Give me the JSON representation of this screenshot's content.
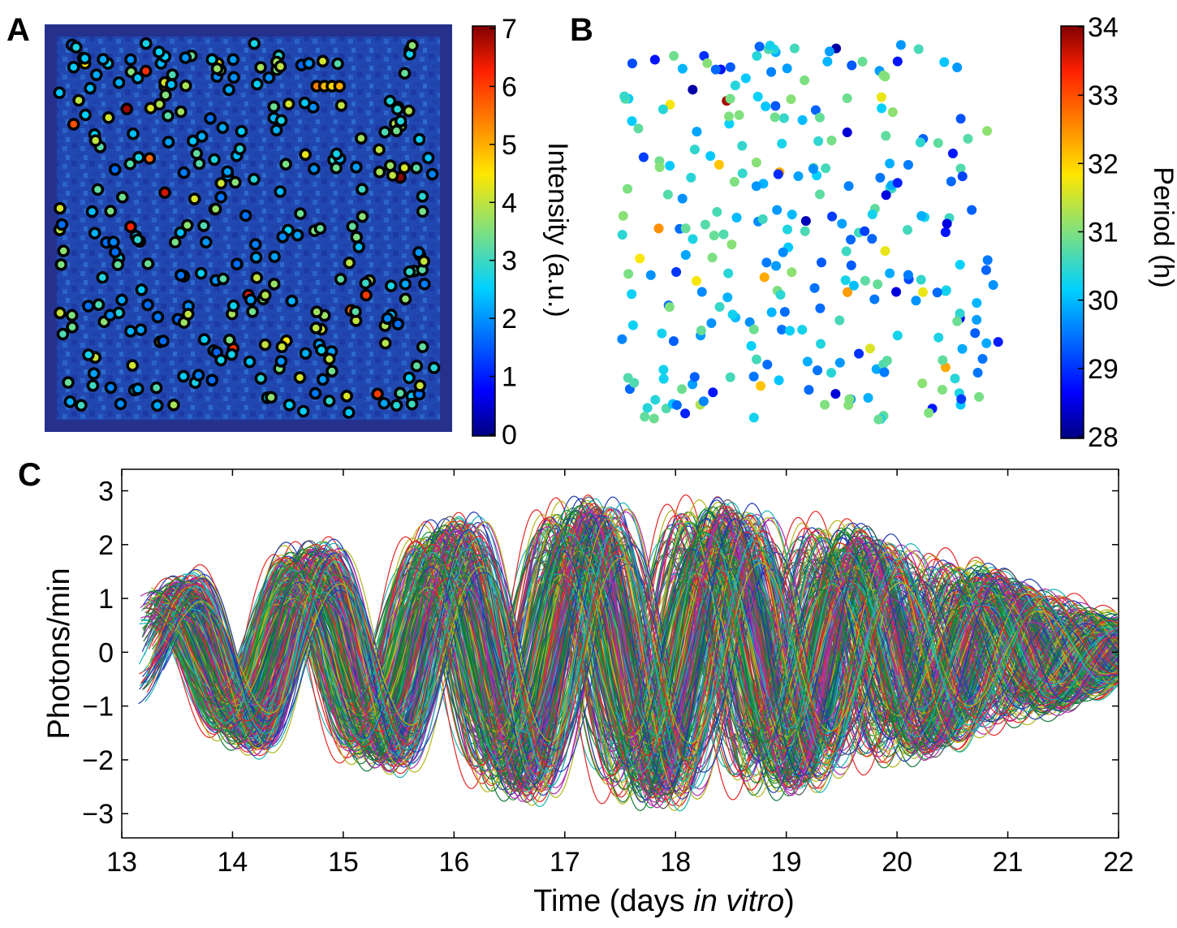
{
  "panels": {
    "a": {
      "label": "A"
    },
    "b": {
      "label": "B"
    },
    "c": {
      "label": "C"
    }
  },
  "chart_data": [
    {
      "type": "heatmap",
      "panel": "A",
      "colorbar": {
        "label": "Intensity (a.u.)",
        "ticks": [
          0,
          1,
          2,
          3,
          4,
          5,
          6,
          7
        ],
        "lim": [
          0,
          7
        ],
        "colormap": "jet"
      },
      "background_color": "#1f2f8c",
      "notes": "Bioluminescence image of cultured cells, each detected cell marked with a black ring; ring centre colored by intensity.",
      "cells": [
        {
          "x": 0.04,
          "y": 0.07,
          "v": 2.5
        },
        {
          "x": 0.07,
          "y": 0.06,
          "v": 4.5
        },
        {
          "x": 0.1,
          "y": 0.09,
          "v": 2.2
        },
        {
          "x": 0.13,
          "y": 0.06,
          "v": 2.6
        },
        {
          "x": 0.19,
          "y": 0.05,
          "v": 2.0
        },
        {
          "x": 0.23,
          "y": 0.08,
          "v": 6.1
        },
        {
          "x": 0.27,
          "y": 0.06,
          "v": 2.3
        },
        {
          "x": 0.3,
          "y": 0.09,
          "v": 3.1
        },
        {
          "x": 0.35,
          "y": 0.04,
          "v": 3.3
        },
        {
          "x": 0.42,
          "y": 0.06,
          "v": 4.4
        },
        {
          "x": 0.46,
          "y": 0.05,
          "v": 2.1
        },
        {
          "x": 0.58,
          "y": 0.04,
          "v": 2.9
        },
        {
          "x": 0.68,
          "y": 0.12,
          "v": 5.4
        },
        {
          "x": 0.7,
          "y": 0.12,
          "v": 4.9
        },
        {
          "x": 0.72,
          "y": 0.12,
          "v": 4.6
        },
        {
          "x": 0.74,
          "y": 0.12,
          "v": 5.0
        },
        {
          "x": 0.18,
          "y": 0.18,
          "v": 6.8
        },
        {
          "x": 0.28,
          "y": 0.12,
          "v": 5.7
        },
        {
          "x": 0.04,
          "y": 0.22,
          "v": 5.8
        },
        {
          "x": 0.11,
          "y": 0.28,
          "v": 3.2
        },
        {
          "x": 0.24,
          "y": 0.31,
          "v": 5.6
        },
        {
          "x": 0.28,
          "y": 0.4,
          "v": 6.5
        },
        {
          "x": 0.19,
          "y": 0.49,
          "v": 6.2
        },
        {
          "x": 0.9,
          "y": 0.36,
          "v": 6.9
        },
        {
          "x": 0.95,
          "y": 0.26,
          "v": 2.6
        },
        {
          "x": 0.65,
          "y": 0.3,
          "v": 4.3
        },
        {
          "x": 0.33,
          "y": 0.62,
          "v": 5.0
        },
        {
          "x": 0.5,
          "y": 0.67,
          "v": 6.3
        },
        {
          "x": 0.46,
          "y": 0.81,
          "v": 6.1
        },
        {
          "x": 0.77,
          "y": 0.71,
          "v": 5.6
        },
        {
          "x": 0.81,
          "y": 0.67,
          "v": 6.0
        },
        {
          "x": 0.12,
          "y": 0.74,
          "v": 3.6
        },
        {
          "x": 0.6,
          "y": 0.79,
          "v": 4.4
        },
        {
          "x": 0.72,
          "y": 0.87,
          "v": 3.4
        },
        {
          "x": 0.84,
          "y": 0.93,
          "v": 6.0
        },
        {
          "x": 0.89,
          "y": 0.96,
          "v": 2.8
        },
        {
          "x": 0.36,
          "y": 0.9,
          "v": 2.7
        },
        {
          "x": 0.2,
          "y": 0.92,
          "v": 2.5
        },
        {
          "x": 0.55,
          "y": 0.94,
          "v": 2.6
        },
        {
          "x": 0.06,
          "y": 0.96,
          "v": 3.0
        }
      ]
    },
    {
      "type": "scatter",
      "panel": "B",
      "colorbar": {
        "label": "Period (h)",
        "ticks": [
          28,
          29,
          30,
          31,
          32,
          33,
          34
        ],
        "lim": [
          28,
          34
        ],
        "colormap": "jet"
      },
      "notes": "Spatial map of detected cells colored by circadian period; majority between 29.5 and 31 h.",
      "points": [
        {
          "x": 0.03,
          "y": 0.05,
          "v": 29.2
        },
        {
          "x": 0.09,
          "y": 0.04,
          "v": 28.8
        },
        {
          "x": 0.14,
          "y": 0.03,
          "v": 30.9
        },
        {
          "x": 0.22,
          "y": 0.03,
          "v": 29.0
        },
        {
          "x": 0.29,
          "y": 0.06,
          "v": 29.3
        },
        {
          "x": 0.36,
          "y": 0.03,
          "v": 30.4
        },
        {
          "x": 0.41,
          "y": 0.02,
          "v": 29.9
        },
        {
          "x": 0.46,
          "y": 0.01,
          "v": 30.6
        },
        {
          "x": 0.57,
          "y": 0.01,
          "v": 28.2
        },
        {
          "x": 0.19,
          "y": 0.12,
          "v": 28.2
        },
        {
          "x": 0.28,
          "y": 0.15,
          "v": 33.8
        },
        {
          "x": 0.13,
          "y": 0.16,
          "v": 31.8
        },
        {
          "x": 0.69,
          "y": 0.14,
          "v": 31.7
        },
        {
          "x": 0.72,
          "y": 0.18,
          "v": 31.1
        },
        {
          "x": 0.06,
          "y": 0.3,
          "v": 29.1
        },
        {
          "x": 0.26,
          "y": 0.32,
          "v": 32.1
        },
        {
          "x": 0.42,
          "y": 0.34,
          "v": 32.3
        },
        {
          "x": 0.9,
          "y": 0.33,
          "v": 30.7
        },
        {
          "x": 0.97,
          "y": 0.23,
          "v": 31.1
        },
        {
          "x": 0.1,
          "y": 0.49,
          "v": 32.5
        },
        {
          "x": 0.49,
          "y": 0.47,
          "v": 28.3
        },
        {
          "x": 0.86,
          "y": 0.5,
          "v": 28.8
        },
        {
          "x": 0.7,
          "y": 0.55,
          "v": 31.7
        },
        {
          "x": 0.05,
          "y": 0.57,
          "v": 31.8
        },
        {
          "x": 0.2,
          "y": 0.63,
          "v": 31.8
        },
        {
          "x": 0.38,
          "y": 0.62,
          "v": 32.3
        },
        {
          "x": 0.6,
          "y": 0.66,
          "v": 32.4
        },
        {
          "x": 0.8,
          "y": 0.66,
          "v": 31.7
        },
        {
          "x": 0.48,
          "y": 0.76,
          "v": 30.3
        },
        {
          "x": 0.66,
          "y": 0.81,
          "v": 31.6
        },
        {
          "x": 0.86,
          "y": 0.86,
          "v": 32.3
        },
        {
          "x": 0.37,
          "y": 0.91,
          "v": 32.1
        },
        {
          "x": 0.21,
          "y": 0.96,
          "v": 31.3
        },
        {
          "x": 0.12,
          "y": 0.97,
          "v": 30.7
        },
        {
          "x": 0.54,
          "y": 0.96,
          "v": 31.0
        },
        {
          "x": 0.9,
          "y": 0.96,
          "v": 30.1
        }
      ]
    },
    {
      "type": "line",
      "panel": "C",
      "xlabel_pre": "Time (days ",
      "xlabel_em": "in vitro",
      "xlabel_post": ")",
      "ylabel": "Photons/min",
      "xlim": [
        13,
        22
      ],
      "ylim": [
        -3.45,
        3.4
      ],
      "xticks": [
        13,
        14,
        15,
        16,
        17,
        18,
        19,
        20,
        21,
        22
      ],
      "yticks": [
        -3,
        -2,
        -1,
        0,
        1,
        2,
        3
      ],
      "ytick_labels": [
        "−3",
        "−2",
        "−1",
        "0",
        "1",
        "2",
        "3"
      ],
      "series_count": 300,
      "series_start_x": [
        13.15,
        13.5
      ],
      "period_days": [
        1.2,
        1.4
      ],
      "peak_times_mean": [
        13.45,
        14.75,
        15.95,
        17.2,
        18.45,
        19.75,
        21.05
      ],
      "trough_times_mean": [
        14.15,
        15.35,
        16.6,
        17.85,
        19.1,
        20.4,
        21.7
      ],
      "amplitude_envelope": [
        [
          13.2,
          0.9
        ],
        [
          14.2,
          1.5
        ],
        [
          15.3,
          1.7
        ],
        [
          16.6,
          2.2
        ],
        [
          17.9,
          2.3
        ],
        [
          19.1,
          2.1
        ],
        [
          20.4,
          1.5
        ],
        [
          21.6,
          0.8
        ],
        [
          22.0,
          0.5
        ]
      ],
      "colors": [
        "#1f3bb3",
        "#1a9a3a",
        "#e62727",
        "#19b3b3",
        "#b02ab0",
        "#b5b51a",
        "#555555",
        "#127a37"
      ]
    }
  ]
}
